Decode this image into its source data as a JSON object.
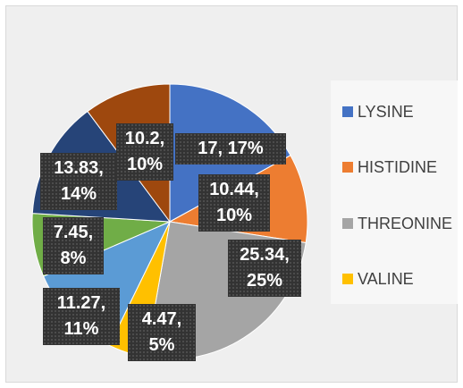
{
  "chart_data": {
    "type": "pie",
    "categories": [
      "LYSINE",
      "HISTIDINE",
      "THREONINE",
      "VALINE",
      null,
      null,
      null,
      null
    ],
    "values": [
      17,
      10.44,
      25.34,
      4.47,
      11.27,
      7.45,
      13.83,
      10.2
    ],
    "value_labels": [
      "17, 17%",
      "10.44, 10%",
      "25.34, 25%",
      "4.47, 5%",
      "11.27, 11%",
      "7.45, 8%",
      "13.83, 14%",
      "10.2, 10%"
    ],
    "colors": [
      "#4472c4",
      "#ed7d31",
      "#a5a5a5",
      "#ffc000",
      "#5b9bd5",
      "#70ad47",
      "#264478",
      "#9e480e"
    ],
    "legend": "right"
  }
}
